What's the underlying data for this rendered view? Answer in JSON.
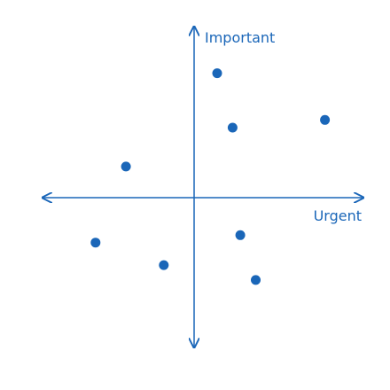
{
  "chart_data": {
    "type": "scatter",
    "title": "",
    "xlabel": "Urgent",
    "ylabel": "Important",
    "xlim": [
      -10,
      11
    ],
    "ylim": [
      -10,
      11
    ],
    "grid": false,
    "legend": "none",
    "points": [
      {
        "x": 1.5,
        "y": 8
      },
      {
        "x": 2.5,
        "y": 4.5
      },
      {
        "x": 8.5,
        "y": 5
      },
      {
        "x": -4.5,
        "y": 2
      },
      {
        "x": 3,
        "y": -2.5
      },
      {
        "x": -6.5,
        "y": -3
      },
      {
        "x": -2,
        "y": -4.5
      },
      {
        "x": 4,
        "y": -5.5
      }
    ]
  },
  "colors": {
    "axis": "#1a66b8",
    "point": "#1a66b8"
  }
}
